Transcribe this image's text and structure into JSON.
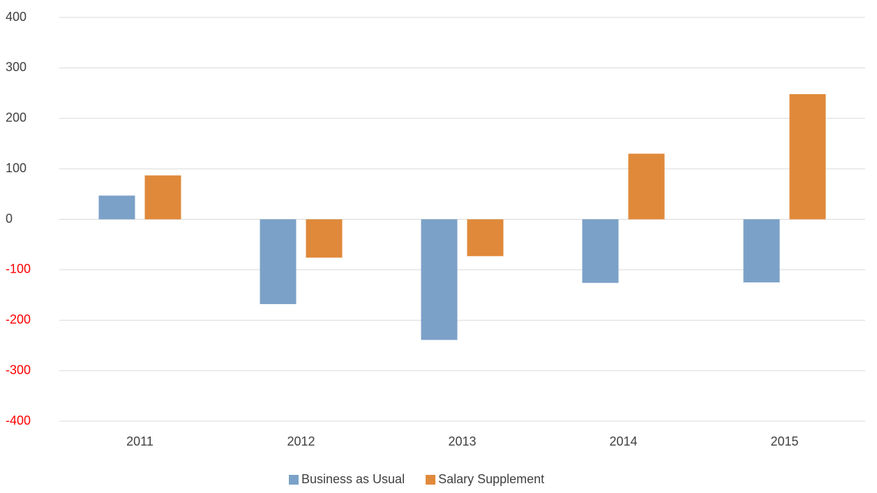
{
  "chart_data": {
    "type": "bar",
    "categories": [
      "2011",
      "2012",
      "2013",
      "2014",
      "2015"
    ],
    "series": [
      {
        "name": "Business as Usual",
        "color": "#7ba1c8",
        "values": [
          47,
          -168,
          -239,
          -126,
          -125
        ]
      },
      {
        "name": "Salary Supplement",
        "color": "#e0893a",
        "values": [
          87,
          -76,
          -73,
          130,
          248
        ]
      }
    ],
    "ylim": [
      -400,
      400
    ],
    "yticks": [
      -400,
      -300,
      -200,
      -100,
      0,
      100,
      200,
      300,
      400
    ],
    "grid": true,
    "negative_tick_color": "#ff0000",
    "legend": "bottom"
  }
}
